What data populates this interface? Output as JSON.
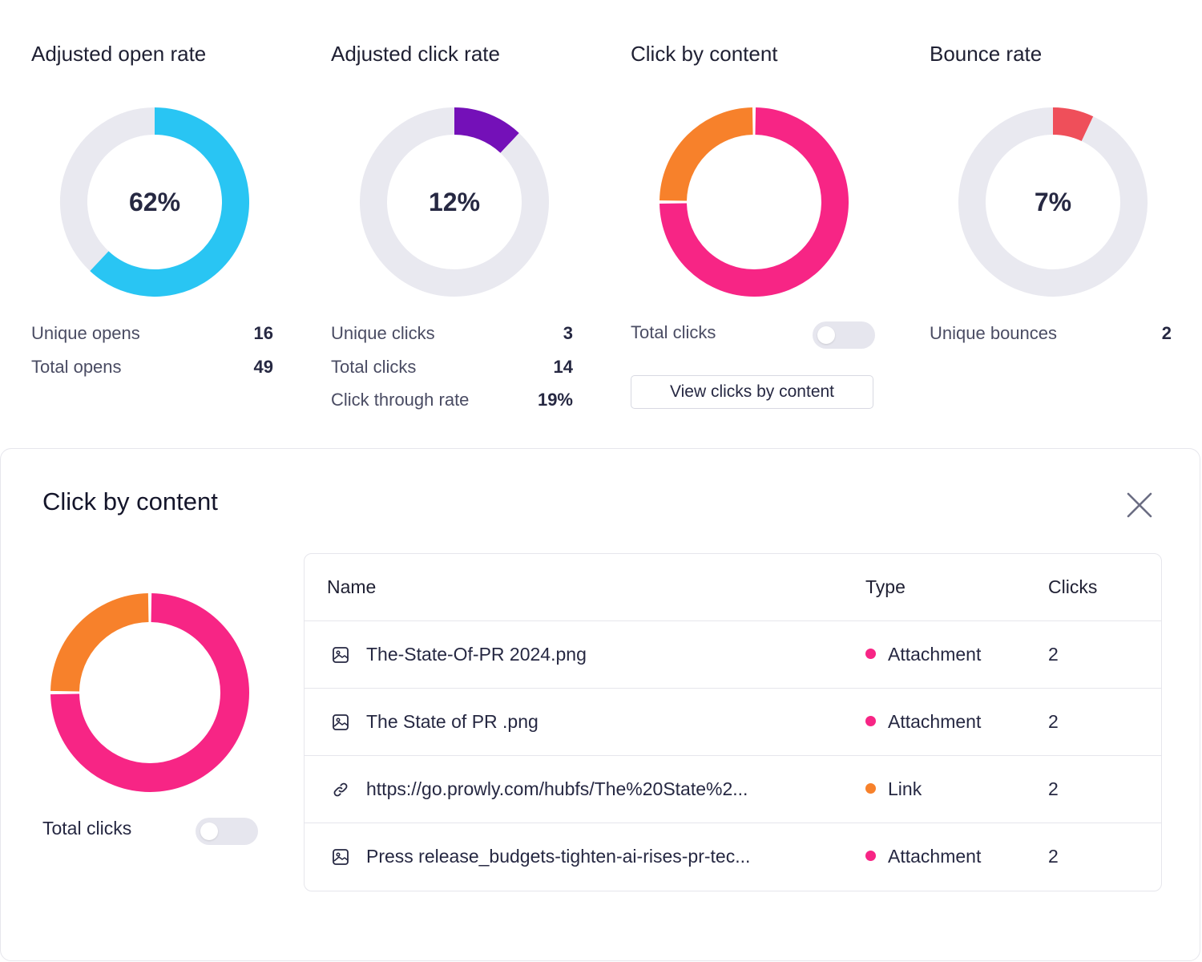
{
  "metrics": [
    {
      "title": "Adjusted open rate",
      "center": "62%",
      "rows": [
        {
          "label": "Unique opens",
          "value": "16"
        },
        {
          "label": "Total opens",
          "value": "49"
        }
      ]
    },
    {
      "title": "Adjusted click rate",
      "center": "12%",
      "rows": [
        {
          "label": "Unique clicks",
          "value": "3"
        },
        {
          "label": "Total clicks",
          "value": "14"
        },
        {
          "label": "Click through rate",
          "value": "19%"
        }
      ]
    },
    {
      "title": "Click by content",
      "toggle_label": "Total clicks",
      "button_label": "View clicks by content"
    },
    {
      "title": "Bounce rate",
      "center": "7%",
      "rows": [
        {
          "label": "Unique bounces",
          "value": "2"
        }
      ]
    }
  ],
  "chart_data": [
    {
      "type": "pie",
      "values": [
        62,
        38
      ],
      "colors": [
        "#29c5f3",
        "#e9e9f0"
      ]
    },
    {
      "type": "pie",
      "values": [
        12,
        88
      ],
      "colors": [
        "#7410b8",
        "#e9e9f0"
      ]
    },
    {
      "type": "pie",
      "categories": [
        "Attachment",
        "Link"
      ],
      "values": [
        6,
        2
      ],
      "colors": [
        "#f72585",
        "#f7812b"
      ]
    },
    {
      "type": "pie",
      "values": [
        7,
        93
      ],
      "colors": [
        "#ef4f5a",
        "#e9e9f0"
      ]
    }
  ],
  "panel": {
    "title": "Click by content",
    "toggle_label": "Total clicks",
    "table": {
      "headers": [
        "Name",
        "Type",
        "Clicks"
      ],
      "rows": [
        {
          "icon": "image-icon",
          "name": "The-State-Of-PR 2024.png",
          "type": "Attachment",
          "type_color": "#f72585",
          "clicks": "2"
        },
        {
          "icon": "image-icon",
          "name": "The State of PR .png",
          "type": "Attachment",
          "type_color": "#f72585",
          "clicks": "2"
        },
        {
          "icon": "link-icon",
          "name": "https://go.prowly.com/hubfs/The%20State%2...",
          "type": "Link",
          "type_color": "#f7812b",
          "clicks": "2"
        },
        {
          "icon": "image-icon",
          "name": "Press release_budgets-tighten-ai-rises-pr-tec...",
          "type": "Attachment",
          "type_color": "#f72585",
          "clicks": "2"
        }
      ]
    }
  }
}
